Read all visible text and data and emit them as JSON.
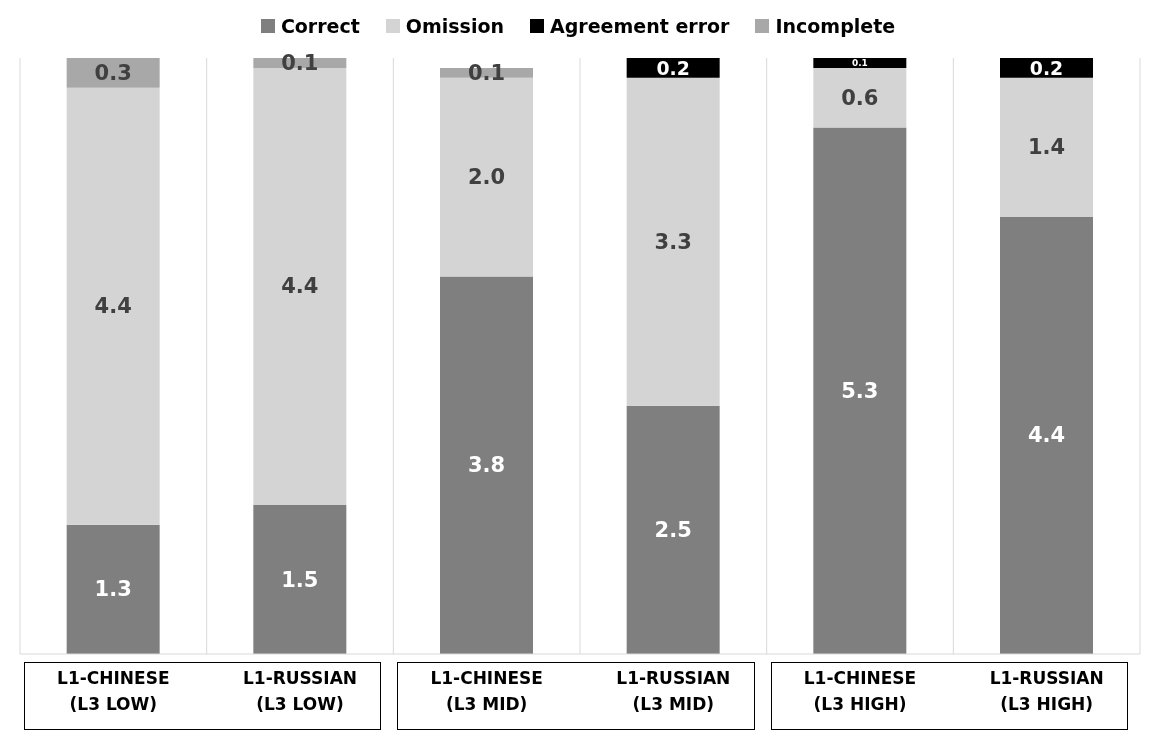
{
  "chart_data": {
    "type": "bar",
    "stacked": true,
    "legend": "top",
    "grid": "x",
    "categories": [
      "L1-CHINESE\n(L3 LOW)",
      "L1-RUSSIAN\n(L3 LOW)",
      "L1-CHINESE\n(L3 MID)",
      "L1-RUSSIAN\n(L3 MID)",
      "L1-CHINESE\n(L3 HIGH)",
      "L1-RUSSIAN\n(L3 HIGH)"
    ],
    "series": [
      {
        "name": "Correct",
        "color": "#7f7f7f",
        "values": [
          1.3,
          1.5,
          3.8,
          2.5,
          5.3,
          4.4
        ],
        "value_labels": [
          "1.3",
          "1.5",
          "3.8",
          "2.5",
          "5.3",
          "4.4"
        ]
      },
      {
        "name": "Omission",
        "color": "#d4d4d4",
        "values": [
          4.4,
          4.4,
          2.0,
          3.3,
          0.6,
          1.4
        ],
        "value_labels": [
          "4.4",
          "4.4",
          "2.0",
          "3.3",
          "0.6",
          "1.4"
        ]
      },
      {
        "name": "Agreement error",
        "color": "#000000",
        "values": [
          null,
          null,
          null,
          0.2,
          0.1,
          0.2
        ],
        "value_labels": [
          null,
          null,
          null,
          "0.2",
          "0.1",
          "0.2"
        ]
      },
      {
        "name": "Incomplete",
        "color": "#a8a8a8",
        "values": [
          0.3,
          0.1,
          0.1,
          null,
          null,
          null
        ],
        "value_labels": [
          "0.3",
          "0.1",
          "0.1",
          null,
          null,
          null
        ]
      }
    ]
  }
}
